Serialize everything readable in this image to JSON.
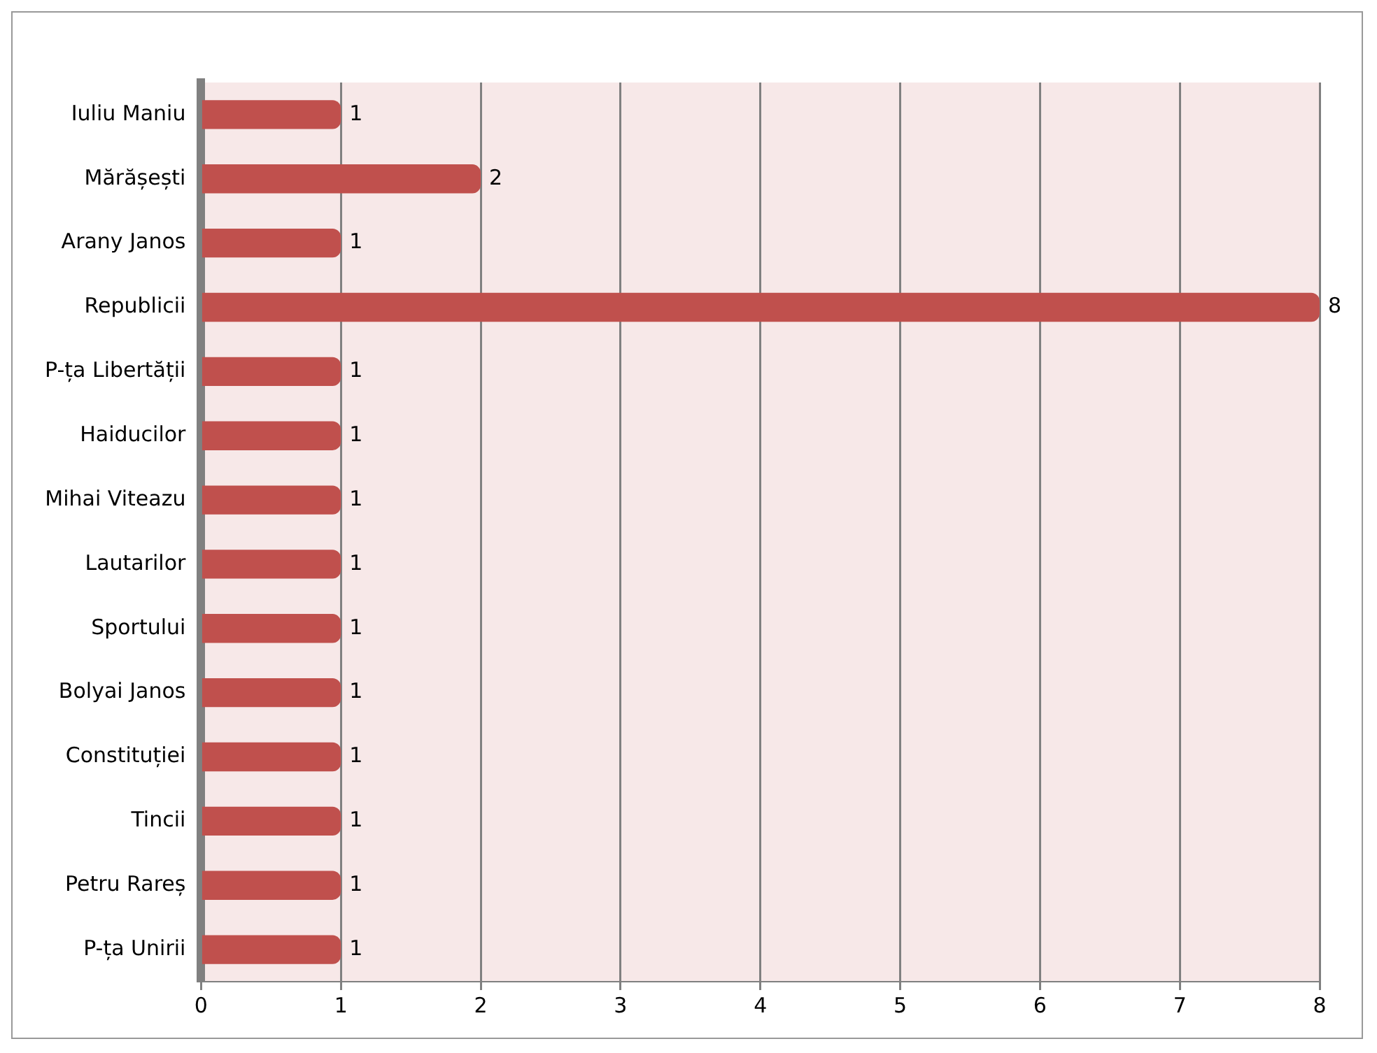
{
  "chart_data": {
    "type": "bar",
    "orientation": "horizontal",
    "categories": [
      "Iuliu Maniu",
      "Mărășești",
      "Arany Janos",
      "Republicii",
      "P-ța Libertății",
      "Haiducilor",
      "Mihai Viteazu",
      "Lautarilor",
      "Sportului",
      "Bolyai Janos",
      "Constituției",
      "Tincii",
      "Petru Rareș",
      "P-ța Unirii"
    ],
    "values": [
      1,
      2,
      1,
      8,
      1,
      1,
      1,
      1,
      1,
      1,
      1,
      1,
      1,
      1
    ],
    "color": "#c0504d",
    "xlim": [
      0,
      8
    ],
    "xticks": [
      0,
      1,
      2,
      3,
      4,
      5,
      6,
      7,
      8
    ],
    "grid": "x",
    "legend": false,
    "data_labels": true
  }
}
